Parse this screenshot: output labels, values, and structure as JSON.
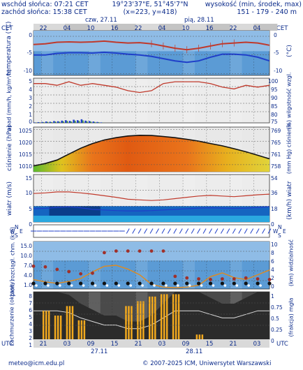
{
  "header": {
    "sunrise": "wschód słońca: 07:21 CET",
    "sunset": "zachód słońca: 15:38 CET",
    "coords": "19°23'37\"E, 51°45'7\"N",
    "grid": "(x=223, y=418)",
    "altitude_label": "wysokość (min, środek, max)",
    "altitude_values": "151 - 179 - 240 m"
  },
  "timezone": "CET",
  "bottom_timezone": "UTC",
  "days_top": [
    "czw, 27.11",
    "pią, 28.11"
  ],
  "days_bottom": [
    "27.11",
    "28.11"
  ],
  "hours_top": [
    "22",
    "04",
    "10",
    "16",
    "22",
    "04",
    "10",
    "16",
    "22",
    "04"
  ],
  "hours_bottom": [
    "21",
    "03",
    "09",
    "15",
    "21",
    "03",
    "09",
    "15",
    "21",
    "03"
  ],
  "footer": {
    "email": "meteo@icm.edu.pl",
    "copyright": "© 2007-2025 ICM, Uniwersytet Warszawski"
  },
  "colors": {
    "blue_label": "#0a2a8a",
    "temp_red": "#c0392b",
    "temp_blue": "#1f3fc9",
    "sky": "#6fa8dc",
    "orange": "#e08a1e",
    "dark_gray": "#3a3a3a"
  },
  "chart_data": [
    {
      "type": "line",
      "name": "temperature",
      "ylabel_left": "temperatura (°C)",
      "ylabel_right": "(°C)",
      "yticks": [
        0,
        -5,
        -10
      ],
      "ylim": [
        -10.5,
        1.5
      ],
      "x": [
        0,
        3,
        6,
        9,
        12,
        15,
        18,
        21,
        24,
        27,
        30,
        33,
        36,
        39,
        42,
        45,
        48,
        51,
        54,
        57,
        60
      ],
      "series": [
        {
          "name": "temperatura",
          "values": [
            -2.2,
            -2.0,
            -1.6,
            -1.5,
            -1.6,
            -1.5,
            -1.3,
            -1.6,
            -1.8,
            -1.7,
            -2.0,
            -2.6,
            -3.2,
            -3.6,
            -3.2,
            -2.6,
            -2.0,
            -1.8,
            -1.6,
            -1.8,
            -2.4
          ]
        },
        {
          "name": "temperatura odczuwalna",
          "values": [
            -5.0,
            -5.0,
            -4.6,
            -4.4,
            -4.4,
            -4.5,
            -4.3,
            -4.5,
            -4.8,
            -5.0,
            -5.4,
            -6.0,
            -6.6,
            -7.0,
            -6.6,
            -5.6,
            -4.8,
            -4.8,
            -5.0,
            -5.6,
            -6.6
          ]
        }
      ]
    },
    {
      "type": "bar",
      "name": "precipitation_humidity",
      "ylabel_left": "opad (mm/h, kg/m²/h)",
      "ylabel_right": "(%) wilgotność wzgl.",
      "yticks_left": [
        5,
        4,
        3,
        2,
        1,
        0
      ],
      "yticks_right": [
        100,
        95,
        90,
        85,
        80,
        75
      ],
      "humidity_x": [
        0,
        3,
        6,
        9,
        12,
        15,
        18,
        21,
        24,
        27,
        30,
        33,
        36,
        39,
        42,
        45,
        48,
        51,
        54,
        57,
        60
      ],
      "humidity": [
        97,
        97,
        96,
        98,
        96,
        97,
        96,
        95,
        93,
        92,
        93,
        97,
        98,
        98,
        98,
        97,
        95,
        94,
        96,
        95,
        96
      ],
      "precip_x": [
        0,
        1,
        2,
        3,
        4,
        5,
        6,
        7,
        8,
        9,
        10,
        11,
        12,
        13,
        14,
        15,
        16,
        17
      ],
      "precip": [
        0.05,
        0.08,
        0.1,
        0.15,
        0.12,
        0.2,
        0.18,
        0.25,
        0.3,
        0.22,
        0.35,
        0.3,
        0.4,
        0.25,
        0.2,
        0.15,
        0.1,
        0.05
      ]
    },
    {
      "type": "area",
      "name": "pressure",
      "ylabel_left": "ciśnienie (hPa)",
      "ylabel_right": "(mm Hg) ciśnienie",
      "yticks_left": [
        1025,
        1020,
        1015,
        1010
      ],
      "yticks_right": [
        769,
        765,
        761,
        758
      ],
      "ylim": [
        1007,
        1026
      ],
      "x": [
        0,
        3,
        6,
        9,
        12,
        15,
        18,
        21,
        24,
        27,
        30,
        33,
        36,
        39,
        42,
        45,
        48,
        51,
        54,
        57,
        60
      ],
      "values": [
        1009.5,
        1010.5,
        1012.0,
        1014.5,
        1017.0,
        1019.0,
        1020.5,
        1021.5,
        1022.2,
        1022.5,
        1022.4,
        1022.0,
        1021.5,
        1020.8,
        1020.0,
        1019.0,
        1018.0,
        1016.8,
        1015.5,
        1014.0,
        1012.5
      ]
    },
    {
      "type": "line",
      "name": "wind",
      "ylabel_left": "wiatr (m/s)",
      "ylabel_right": "(km/h) wiatr",
      "yticks_left": [
        15,
        10,
        5,
        0
      ],
      "yticks_right": [
        54,
        36,
        18,
        0
      ],
      "ylim": [
        0,
        15
      ],
      "x": [
        0,
        3,
        6,
        9,
        12,
        15,
        18,
        21,
        24,
        27,
        30,
        33,
        36,
        39,
        42,
        45,
        48,
        51,
        54,
        57,
        60
      ],
      "series": [
        {
          "name": "porywy",
          "values": [
            9.0,
            9.2,
            9.5,
            9.5,
            9.2,
            8.8,
            8.3,
            7.8,
            7.2,
            7.0,
            6.8,
            7.0,
            7.4,
            7.8,
            8.2,
            8.4,
            8.2,
            8.0,
            8.3,
            8.6,
            8.8
          ]
        },
        {
          "name": "prędkość",
          "values": [
            4.2,
            4.3,
            4.6,
            4.8,
            4.5,
            4.0,
            3.8,
            3.6,
            3.5,
            3.5,
            3.6,
            3.8,
            4.0,
            4.2,
            4.4,
            4.5,
            4.4,
            4.3,
            4.4,
            4.6,
            4.8
          ]
        }
      ]
    },
    {
      "type": "scatter",
      "name": "wind_direction",
      "compass": [
        "N",
        "E",
        "S",
        "W"
      ]
    },
    {
      "type": "scatter",
      "name": "cloud_base_visibility",
      "ylabel_left": "pion. rozciągł. chm. (km)",
      "ylabel_right": "(km) widzialność",
      "yticks_left": [
        "15.0",
        "10.0",
        "7.0",
        "4.0",
        "1.0"
      ],
      "yticks_right": [
        10,
        8,
        6,
        4,
        2,
        0
      ],
      "x": [
        0,
        3,
        6,
        9,
        12,
        15,
        18,
        21,
        24,
        27,
        30,
        33,
        36,
        39,
        42,
        45,
        48,
        51,
        54,
        57,
        60
      ],
      "visibility_km": [
        2.0,
        1.5,
        1.2,
        1.6,
        2.2,
        3.6,
        4.8,
        5.0,
        4.2,
        3.0,
        1.0,
        0.4,
        0.3,
        0.4,
        0.8,
        2.6,
        3.4,
        2.4,
        2.0,
        3.0,
        4.0
      ],
      "cloud_top_km": [
        7.2,
        7.0,
        6.2,
        5.5,
        4.8,
        5.0,
        11.5,
        12.0,
        12.0,
        12.0,
        12.0,
        12.0,
        4.0,
        3.5,
        3.2,
        3.0,
        3.2,
        3.2,
        3.5,
        3.2,
        3.0
      ]
    },
    {
      "type": "area",
      "name": "cloud_cover_fog",
      "ylabel_left": "zachmurzenie (oktanty)",
      "ylabel_right": "(frakcja) mgła",
      "yticks_left": [
        8,
        7,
        6,
        5,
        4,
        3,
        2,
        1
      ],
      "yticks_right": [
        "1",
        "0.75",
        "0.5",
        "0.25",
        "0"
      ],
      "x": [
        0,
        3,
        6,
        9,
        12,
        15,
        18,
        21,
        24,
        27,
        30,
        33,
        36,
        39,
        42,
        45,
        48,
        51,
        54,
        57,
        60
      ],
      "cloud_total": [
        8,
        8,
        8,
        7.5,
        6,
        5,
        4,
        4,
        3,
        3,
        4,
        6,
        8,
        8,
        8,
        7,
        6,
        6,
        7,
        8,
        8
      ],
      "fog_fraction": [
        0.0,
        0.6,
        0.5,
        0.7,
        0.4,
        0.0,
        0.0,
        0.0,
        0.7,
        0.8,
        0.9,
        0.95,
        0.95,
        0.0,
        0.1,
        0.0,
        0.0,
        0.0,
        0.0,
        0.0,
        0.0
      ]
    }
  ]
}
